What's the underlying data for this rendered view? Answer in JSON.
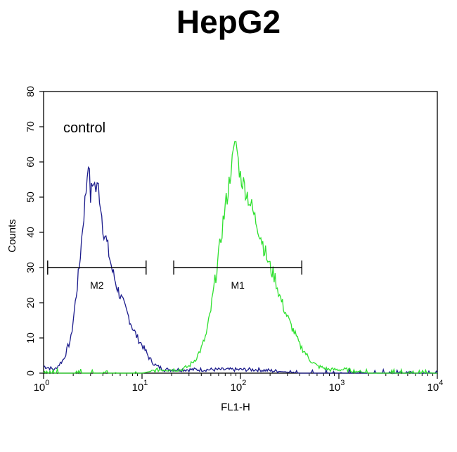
{
  "chart_data": {
    "type": "histogram",
    "title": "HepG2",
    "xlabel": "FL1-H",
    "ylabel": "Counts",
    "x_scale": "log",
    "xlim": [
      1,
      10000
    ],
    "ylim": [
      0,
      80
    ],
    "x_ticks": [
      {
        "base": "10",
        "exp": "0",
        "value": 1
      },
      {
        "base": "10",
        "exp": "1",
        "value": 10
      },
      {
        "base": "10",
        "exp": "2",
        "value": 100
      },
      {
        "base": "10",
        "exp": "3",
        "value": 1000
      },
      {
        "base": "10",
        "exp": "4",
        "value": 10000
      }
    ],
    "y_ticks": [
      "0",
      "10",
      "20",
      "30",
      "40",
      "50",
      "60",
      "70",
      "80"
    ],
    "annotation": "control",
    "gates": [
      {
        "label": "M2",
        "x_start": 1.1,
        "x_end": 11,
        "y": 30
      },
      {
        "label": "M1",
        "x_start": 21,
        "x_end": 420,
        "y": 30
      }
    ],
    "series": [
      {
        "color": "#1c1c8c",
        "x": [
          1,
          1.3,
          1.6,
          1.9,
          2.1,
          2.3,
          2.5,
          2.7,
          2.85,
          3.0,
          3.2,
          3.4,
          3.6,
          3.8,
          4.0,
          4.3,
          4.6,
          5.0,
          5.5,
          6.0,
          6.6,
          7.3,
          8.0,
          9.0,
          10,
          11,
          12,
          14,
          17,
          20,
          30,
          60,
          150,
          400,
          1000,
          10000
        ],
        "y": [
          2,
          1,
          4,
          10,
          20,
          30,
          42,
          52,
          61,
          50,
          55,
          52,
          53,
          48,
          42,
          38,
          34,
          29,
          25,
          22,
          19,
          16,
          13,
          10,
          8,
          6,
          4,
          2,
          1,
          1,
          1,
          1,
          1,
          0,
          0,
          0
        ]
      },
      {
        "color": "#2ee02e",
        "x": [
          1,
          10,
          15,
          20,
          25,
          30,
          35,
          40,
          45,
          50,
          55,
          60,
          65,
          70,
          75,
          80,
          85,
          90,
          95,
          100,
          110,
          120,
          130,
          140,
          150,
          165,
          180,
          200,
          225,
          250,
          280,
          320,
          360,
          400,
          450,
          500,
          600,
          800,
          1200,
          2000,
          10000
        ],
        "y": [
          0,
          0,
          1,
          1,
          1,
          2,
          4,
          7,
          11,
          18,
          26,
          33,
          41,
          47,
          52,
          58,
          62,
          66,
          60,
          56,
          53,
          50,
          47,
          44,
          42,
          38,
          34,
          30,
          27,
          22,
          18,
          14,
          11,
          8,
          6,
          4,
          2,
          1,
          1,
          0,
          0
        ]
      }
    ]
  }
}
